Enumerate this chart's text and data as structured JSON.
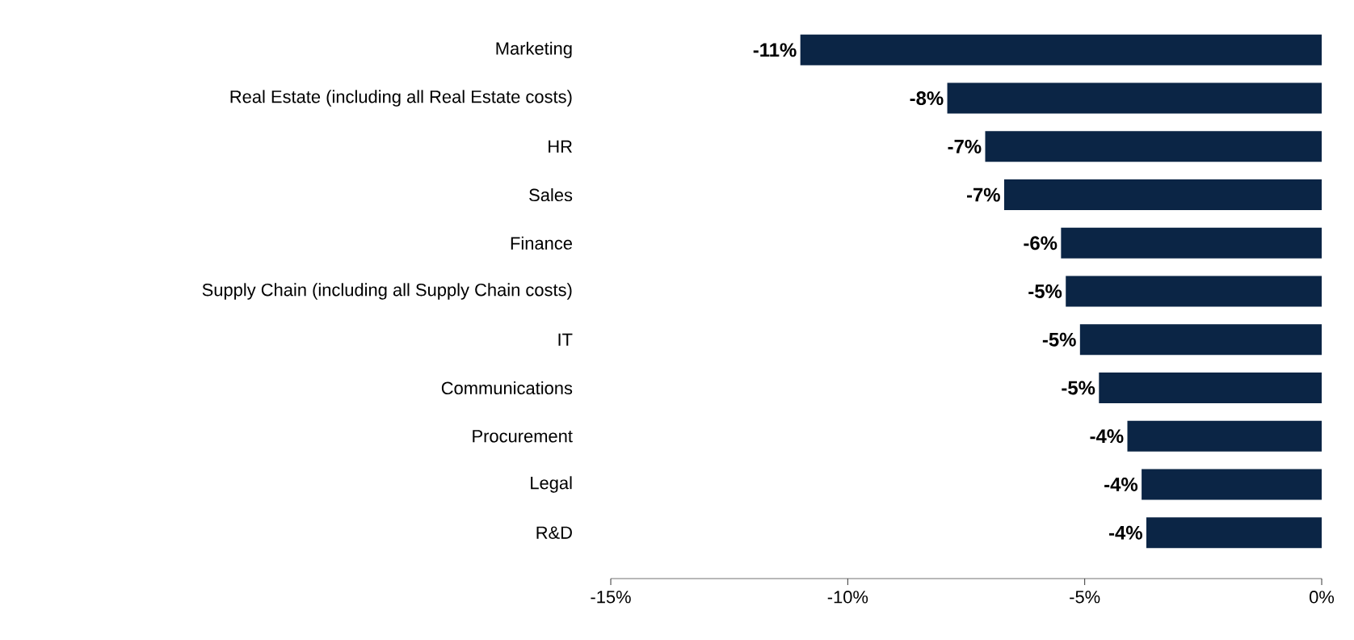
{
  "chart_data": {
    "type": "bar",
    "orientation": "horizontal",
    "categories": [
      "Marketing",
      "Real Estate (including all Real Estate costs)",
      "HR",
      "Sales",
      "Finance",
      "Supply Chain (including all Supply Chain costs)",
      "IT",
      "Communications",
      "Procurement",
      "Legal",
      "R&D"
    ],
    "values": [
      -11.0,
      -7.9,
      -7.1,
      -6.7,
      -5.5,
      -5.4,
      -5.1,
      -4.7,
      -4.1,
      -3.8,
      -3.7
    ],
    "value_labels": [
      "-11%",
      "-8%",
      "-7%",
      "-7%",
      "-6%",
      "-5%",
      "-5%",
      "-5%",
      "-4%",
      "-4%",
      "-4%"
    ],
    "color": "#0b2545",
    "xlim": [
      -15,
      0
    ],
    "xticks": [
      {
        "value": -15,
        "label": "-15%"
      },
      {
        "value": -10,
        "label": "-10%"
      },
      {
        "value": -5,
        "label": "-5%"
      },
      {
        "value": 0,
        "label": "0%"
      }
    ]
  }
}
